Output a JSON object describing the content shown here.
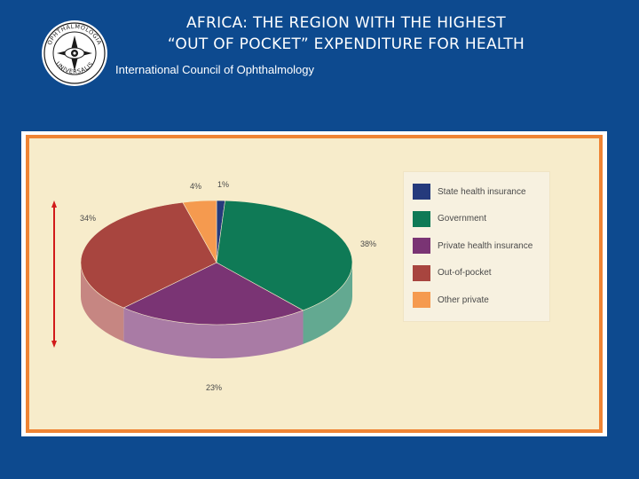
{
  "header": {
    "title_line1": "AFRICA: THE REGION WITH THE HIGHEST",
    "title_line2": "“OUT OF POCKET” EXPENDITURE FOR HEALTH",
    "organization": "International Council of Ophthalmology"
  },
  "logo": {
    "icon": "ophthalmology-seal-icon",
    "text_top": "OPHTHALMOLOGIA",
    "text_bottom": "UNIVERSALIS"
  },
  "chart_data": {
    "type": "pie",
    "style": "3d",
    "categories": [
      "State health insurance",
      "Government",
      "Private health insurance",
      "Out-of-pocket",
      "Other private"
    ],
    "values": [
      1,
      38,
      23,
      34,
      4
    ],
    "labels": [
      "1%",
      "38%",
      "23%",
      "34%",
      "4%"
    ],
    "colors": [
      "#253a7c",
      "#0f7a56",
      "#7a3474",
      "#a8453f",
      "#f59a4f"
    ],
    "legend_placement": "right"
  },
  "annotation": {
    "arrow": "double-headed-vertical-arrow",
    "color": "#d11a1a"
  }
}
